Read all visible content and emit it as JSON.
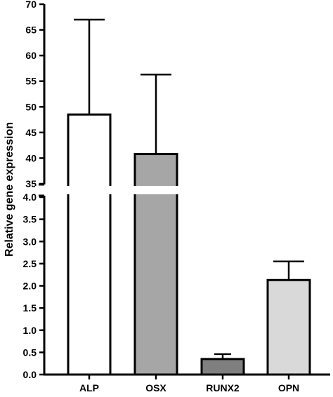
{
  "chart_data": {
    "type": "bar",
    "title": "",
    "xlabel": "",
    "ylabel": "Relative gene expression",
    "categories": [
      "ALP",
      "OSX",
      "RUNX2",
      "OPN"
    ],
    "values": [
      48.5,
      40.8,
      0.35,
      2.13
    ],
    "error_upper": [
      67.0,
      56.3,
      0.46,
      2.55
    ],
    "colors": [
      "#ffffff",
      "#a6a6a6",
      "#7f7f7f",
      "#d9d9d9"
    ],
    "axis_break": true,
    "lower_segment": {
      "ylim": [
        0,
        4.0
      ],
      "ticks": [
        "0.0",
        "0.5",
        "1.0",
        "1.5",
        "2.0",
        "2.5",
        "3.0",
        "3.5",
        "4.0"
      ]
    },
    "upper_segment": {
      "ylim": [
        35,
        70
      ],
      "ticks": [
        "35",
        "40",
        "45",
        "50",
        "55",
        "60",
        "65",
        "70"
      ]
    },
    "grid": false,
    "legend": "none"
  }
}
